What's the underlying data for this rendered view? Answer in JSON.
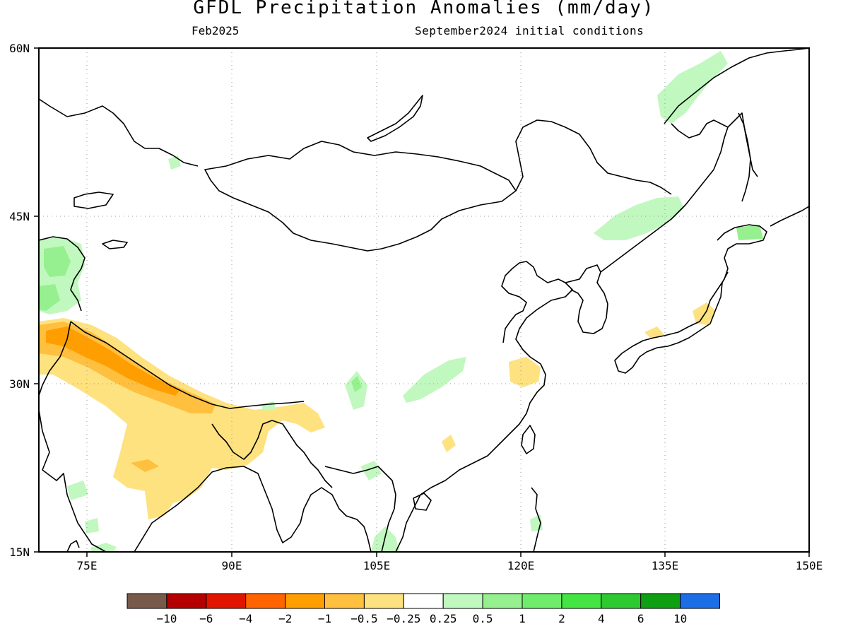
{
  "title": "GFDL Precipitation Anomalies (mm/day)",
  "subtitle_left": "Feb2025",
  "subtitle_right": "September2024 initial conditions",
  "map": {
    "lon_range": [
      70,
      150
    ],
    "lat_range": [
      15,
      60
    ],
    "lon_ticks": [
      "75E",
      "90E",
      "105E",
      "120E",
      "135E",
      "150E"
    ],
    "lat_ticks": [
      "60N",
      "45N",
      "30N",
      "15N"
    ],
    "grid": "dotted",
    "colors": {
      "wet_light": "#c1f8bf",
      "wet_medium": "#96f08f",
      "dry_light": "#fee27f",
      "dry_medium": "#ffbf3f",
      "dry_strong": "#ff9e00",
      "coastline": "#000000"
    },
    "anomaly_regions": [
      {
        "name": "Himalaya / Northern India",
        "category": "-2 to -1"
      },
      {
        "name": "Central & Northeast India",
        "category": "-1 to -0.5"
      },
      {
        "name": "Western Himalaya",
        "category": "-2 to -1"
      },
      {
        "name": "Central Asia (Tajikistan)",
        "category": "0.5 to 1"
      },
      {
        "name": "Southern China",
        "category": "0.25 to 0.5"
      },
      {
        "name": "Sichuan Basin",
        "category": "0.25 to 0.5"
      },
      {
        "name": "Yangtze Delta",
        "category": "-1 to -0.5"
      },
      {
        "name": "Northeast China / Primorye",
        "category": "0.25 to 0.5"
      },
      {
        "name": "Sea of Okhotsk coast",
        "category": "0.25 to 0.5"
      },
      {
        "name": "Hokkaido / Kuril",
        "category": "0.5 to 1"
      },
      {
        "name": "Central Japan",
        "category": "-1 to -0.5"
      },
      {
        "name": "Indochina",
        "category": "0.25 to 0.5"
      }
    ]
  },
  "colorbar": {
    "colors": [
      "#785a4b",
      "#b40000",
      "#e11400",
      "#ff6400",
      "#ff9e00",
      "#ffbf3f",
      "#fee27f",
      "#ffffff",
      "#c1f8bf",
      "#96f08f",
      "#6fec6b",
      "#44e542",
      "#2dc931",
      "#0f9f13",
      "#1c6ee6"
    ],
    "labels": [
      "-10",
      "-6",
      "-4",
      "-2",
      "-1",
      "-0.5",
      "-0.25",
      "0.25",
      "0.5",
      "1",
      "2",
      "4",
      "6",
      "10"
    ]
  }
}
